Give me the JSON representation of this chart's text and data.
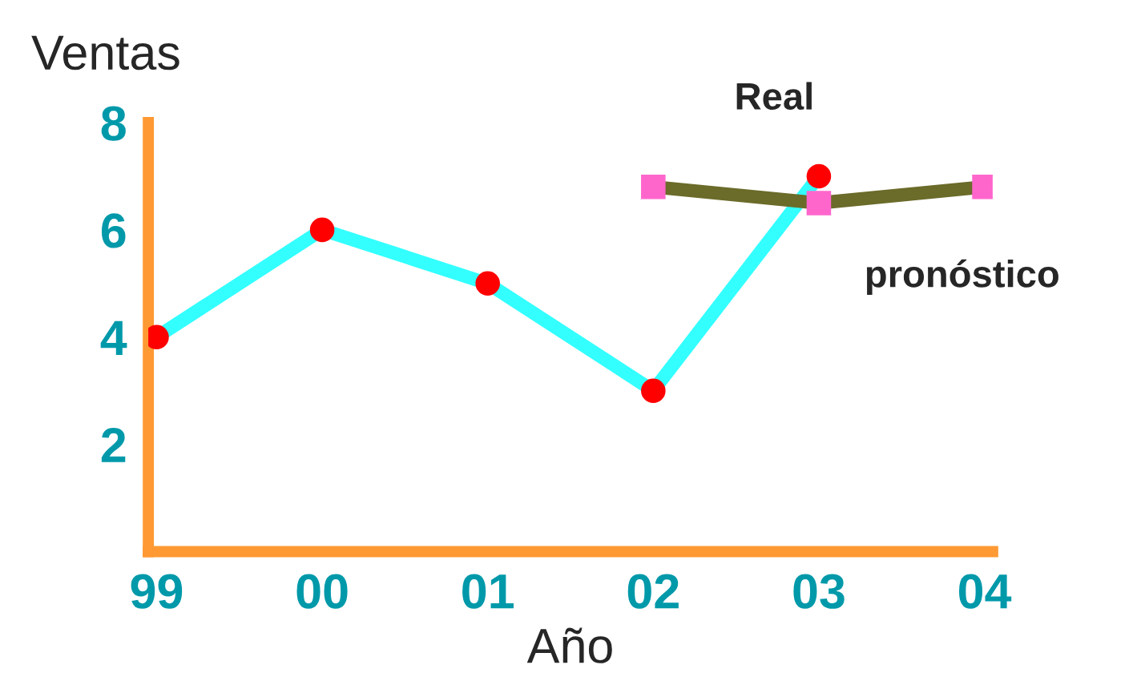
{
  "chart_data": {
    "type": "line",
    "xlabel": "Año",
    "ylabel": "Ventas",
    "categories": [
      "99",
      "00",
      "01",
      "02",
      "03",
      "04"
    ],
    "series": [
      {
        "name": "Real",
        "color": "#33ffff",
        "colors": [
          "#ff0000",
          "#ff0000",
          "#ff0000",
          "#ff0000",
          "#ff0000",
          null
        ],
        "marker": "circle",
        "values": [
          4,
          6,
          5,
          3,
          7,
          null
        ]
      },
      {
        "name": "pronóstico",
        "color": "#6b6b2a",
        "colors": [
          null,
          null,
          null,
          "#ff66cc",
          "#ff66cc",
          "#ff66cc"
        ],
        "marker": "square",
        "values": [
          null,
          null,
          null,
          6.8,
          6.5,
          6.8
        ]
      }
    ],
    "ylim": [
      0,
      8
    ],
    "yticks": [
      {
        "value": 0,
        "label": null
      },
      2,
      4,
      6,
      8
    ],
    "grid": false,
    "legend": false,
    "line_style": "solid"
  }
}
